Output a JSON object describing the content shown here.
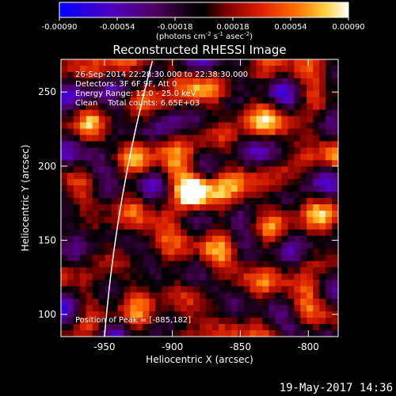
{
  "colorbar": {
    "tick_labels": [
      "-0.00090",
      "-0.00054",
      "-0.00018",
      "0.00018",
      "0.00054",
      "0.00090"
    ],
    "tick_values": [
      -0.0009,
      -0.00054,
      -0.00018,
      0.00018,
      0.00054,
      0.0009
    ],
    "range": [
      -0.0009,
      0.0009
    ],
    "units_label": "(photons cm",
    "units_sup1": "-2",
    "units_mid": " s",
    "units_sup2": "-1",
    "units_end": " asec",
    "units_sup3": "-2",
    "units_close": ")",
    "colors": [
      "#1010ff",
      "#8000a0",
      "#200020",
      "#b01000",
      "#ff6000",
      "#ffffff"
    ]
  },
  "chart_data": {
    "type": "heatmap",
    "title": "Reconstructed RHESSI Image",
    "xlabel": "Heliocentric X (arcsec)",
    "ylabel": "Heliocentric Y (arcsec)",
    "xlim": [
      -982,
      -778
    ],
    "ylim": [
      85,
      272
    ],
    "x_ticks": [
      -950,
      -900,
      -850,
      -800
    ],
    "x_tick_labels": [
      "-950",
      "-900",
      "-850",
      "-800"
    ],
    "y_ticks": [
      100,
      150,
      200,
      250
    ],
    "y_tick_labels": [
      "100",
      "150",
      "200",
      "250"
    ],
    "peak": [
      -885,
      182
    ],
    "annotations": [
      "26-Sep-2014 22:28:30.000 to 22:38:30.000",
      "Detectors: 3F 6F 9F, Att 0",
      "Energy Range: 12.0 - 25.0 keV",
      "Clean    Total counts: 6.65E+03"
    ],
    "peak_label": "Position of Peak = [-885,182]",
    "limb_color": "#ffffff"
  },
  "timestamp": "19-May-2017 14:36"
}
